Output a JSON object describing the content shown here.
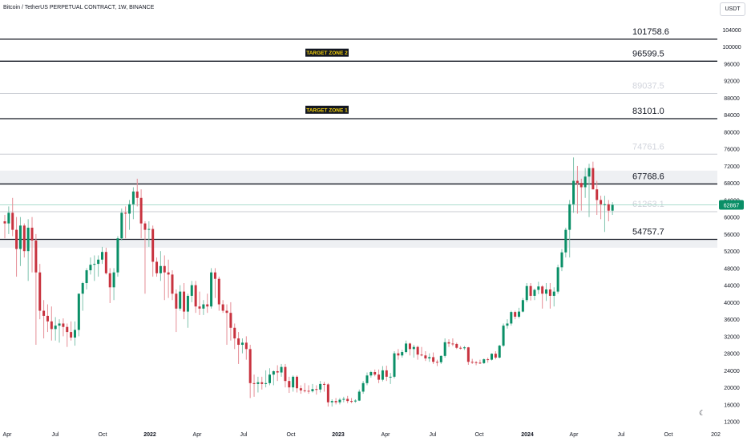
{
  "header": {
    "title": "Bitcoin / TetherUS PERPETUAL CONTRACT, 1W, BINANCE",
    "currency": "USDT"
  },
  "colors": {
    "up": "#0a8f67",
    "down": "#c8333f",
    "up_wick": "#7fc3ae",
    "down_wick": "#e58d95",
    "line_dark": "#131722",
    "line_light": "#c8cbd2",
    "label_dark": "#131722",
    "label_faded": "#d1d4dc",
    "zone_bg": "#131722",
    "zone_fg": "#f5d20a",
    "price_tag": "#0a8f67",
    "band": "#eef0f3"
  },
  "chart_data": {
    "type": "candlestick",
    "y_axis": {
      "ticks": [
        104000,
        100000,
        96000,
        92000,
        88000,
        84000,
        80000,
        76000,
        72000,
        68000,
        64000,
        60000,
        56000,
        52000,
        48000,
        44000,
        40000,
        36000,
        32000,
        28000,
        24000,
        20000,
        16000,
        12000
      ],
      "range": [
        10800,
        107200
      ]
    },
    "x_axis": {
      "ticks": [
        "Apr",
        "Jul",
        "Oct",
        "2022",
        "Apr",
        "Jul",
        "Oct",
        "2023",
        "Apr",
        "Jul",
        "Oct",
        "2024",
        "Apr",
        "Jul",
        "Oct",
        "202"
      ],
      "bold": [
        "2022",
        "2023",
        "2024"
      ]
    },
    "current_price": "62867",
    "current_price_value": 62867,
    "zones": [
      {
        "label": "TARGET ZONE 2",
        "price": 98600
      },
      {
        "label": "TARGET ZONE 1",
        "price": 85200
      }
    ],
    "bands": [
      {
        "from": 67768.6,
        "to": 70900
      },
      {
        "from": 52800,
        "to": 54757.7
      }
    ],
    "levels": [
      {
        "label": "101758.6",
        "price": 101758.6,
        "style": "dark"
      },
      {
        "label": "96599.5",
        "price": 96599.5,
        "style": "dark"
      },
      {
        "label": "89037.5",
        "price": 89037.5,
        "style": "faded"
      },
      {
        "label": "83101.0",
        "price": 83101.0,
        "style": "dark"
      },
      {
        "label": "74761.6",
        "price": 74761.6,
        "style": "faded"
      },
      {
        "label": "67768.6",
        "price": 67768.6,
        "style": "dark"
      },
      {
        "label": "61263.1",
        "price": 61263.1,
        "style": "faded"
      },
      {
        "label": "54757.7",
        "price": 54757.7,
        "style": "dark"
      }
    ],
    "candles": [
      [
        59000,
        60500,
        55000,
        58500
      ],
      [
        58500,
        62500,
        56000,
        61000
      ],
      [
        61000,
        64500,
        55500,
        57000
      ],
      [
        57000,
        60000,
        46000,
        52500
      ],
      [
        52500,
        60000,
        48500,
        58000
      ],
      [
        58000,
        58500,
        50500,
        52000
      ],
      [
        52000,
        59500,
        45000,
        57500
      ],
      [
        57500,
        60000,
        47000,
        54500
      ],
      [
        54500,
        56000,
        30000,
        47000
      ],
      [
        47000,
        49000,
        36000,
        38000
      ],
      [
        38000,
        40500,
        31500,
        36800
      ],
      [
        36800,
        39500,
        33000,
        35500
      ],
      [
        35500,
        39000,
        31000,
        33700
      ],
      [
        33700,
        36500,
        31000,
        34500
      ],
      [
        34500,
        36000,
        30500,
        35000
      ],
      [
        35000,
        36200,
        32000,
        34200
      ],
      [
        34200,
        35000,
        29500,
        33000
      ],
      [
        33000,
        35500,
        31000,
        31700
      ],
      [
        31700,
        35500,
        29800,
        33500
      ],
      [
        33500,
        42000,
        32000,
        42000
      ],
      [
        42000,
        44800,
        38000,
        44500
      ],
      [
        44500,
        48000,
        43000,
        47500
      ],
      [
        47500,
        50500,
        46500,
        48800
      ],
      [
        48800,
        51000,
        45000,
        49000
      ],
      [
        49000,
        51000,
        46000,
        50000
      ],
      [
        50000,
        53000,
        49000,
        51800
      ],
      [
        51800,
        52800,
        46500,
        46800
      ],
      [
        46800,
        48000,
        39800,
        43500
      ],
      [
        43500,
        48000,
        40500,
        47000
      ],
      [
        47000,
        55500,
        46000,
        55000
      ],
      [
        55000,
        62000,
        54500,
        61000
      ],
      [
        61000,
        62500,
        55000,
        60800
      ],
      [
        60800,
        64000,
        57000,
        63000
      ],
      [
        63000,
        67000,
        59500,
        66000
      ],
      [
        66000,
        69000,
        62500,
        64500
      ],
      [
        64500,
        66500,
        55000,
        58500
      ],
      [
        58500,
        59000,
        42000,
        57000
      ],
      [
        57000,
        59000,
        53000,
        57200
      ],
      [
        57200,
        58000,
        46000,
        49500
      ],
      [
        49500,
        50500,
        46000,
        46800
      ],
      [
        46800,
        52000,
        45000,
        48500
      ],
      [
        48500,
        51000,
        40500,
        47000
      ],
      [
        47000,
        50000,
        41000,
        46500
      ],
      [
        46500,
        47500,
        40500,
        42000
      ],
      [
        42000,
        43000,
        33000,
        38500
      ],
      [
        38500,
        44000,
        38000,
        42500
      ],
      [
        42500,
        44500,
        36000,
        37800
      ],
      [
        37800,
        42000,
        34000,
        41500
      ],
      [
        41500,
        45000,
        40000,
        44000
      ],
      [
        44000,
        45000,
        37500,
        39000
      ],
      [
        39000,
        42500,
        37000,
        38500
      ],
      [
        38500,
        40500,
        37000,
        39500
      ],
      [
        39500,
        42000,
        37500,
        39000
      ],
      [
        39000,
        48000,
        38500,
        47000
      ],
      [
        47000,
        48000,
        41000,
        45500
      ],
      [
        45500,
        46000,
        38000,
        39500
      ],
      [
        39500,
        40500,
        37500,
        38000
      ],
      [
        38000,
        39500,
        30000,
        37500
      ],
      [
        37500,
        40000,
        31000,
        34000
      ],
      [
        34000,
        35000,
        29000,
        31500
      ],
      [
        31500,
        33000,
        25500,
        30000
      ],
      [
        30000,
        31500,
        28000,
        30500
      ],
      [
        30500,
        32000,
        26500,
        29000
      ],
      [
        29000,
        30000,
        17500,
        21000
      ],
      [
        21000,
        23000,
        17800,
        20800
      ],
      [
        20800,
        22500,
        18800,
        21200
      ],
      [
        21200,
        22500,
        19500,
        20800
      ],
      [
        20800,
        24000,
        20000,
        21000
      ],
      [
        21000,
        24500,
        20500,
        23000
      ],
      [
        23000,
        24000,
        20500,
        23800
      ],
      [
        23800,
        25200,
        21500,
        23500
      ],
      [
        23500,
        25500,
        22500,
        24800
      ],
      [
        24800,
        25500,
        20000,
        21500
      ],
      [
        21500,
        22500,
        18700,
        20000
      ],
      [
        20000,
        22800,
        19000,
        22500
      ],
      [
        22500,
        22800,
        18800,
        19800
      ],
      [
        19800,
        20500,
        18500,
        19300
      ],
      [
        19300,
        21000,
        18800,
        19200
      ],
      [
        19200,
        20500,
        18500,
        19100
      ],
      [
        19100,
        20800,
        18800,
        19600
      ],
      [
        19600,
        20500,
        18300,
        19500
      ],
      [
        19500,
        21500,
        18800,
        20800
      ],
      [
        20800,
        21300,
        19000,
        20700
      ],
      [
        20700,
        21000,
        15500,
        16500
      ],
      [
        16500,
        17200,
        15500,
        16800
      ],
      [
        16800,
        17500,
        16000,
        16500
      ],
      [
        16500,
        17500,
        16000,
        17100
      ],
      [
        17100,
        17800,
        16500,
        17300
      ],
      [
        17300,
        18000,
        16300,
        16800
      ],
      [
        16800,
        17500,
        16300,
        16700
      ],
      [
        16700,
        17200,
        16400,
        16900
      ],
      [
        16900,
        19500,
        16800,
        19000
      ],
      [
        19000,
        21500,
        18500,
        21000
      ],
      [
        21000,
        23500,
        20500,
        22800
      ],
      [
        22800,
        23900,
        22300,
        23600
      ],
      [
        23600,
        24200,
        22600,
        23000
      ],
      [
        23000,
        24200,
        21000,
        21800
      ],
      [
        21800,
        25000,
        21400,
        24000
      ],
      [
        24000,
        25100,
        21500,
        22500
      ],
      [
        22500,
        23400,
        20800,
        22500
      ],
      [
        22500,
        28500,
        22100,
        28000
      ],
      [
        28000,
        29000,
        26500,
        27500
      ],
      [
        27500,
        28800,
        27000,
        28300
      ],
      [
        28300,
        31000,
        28000,
        30300
      ],
      [
        30300,
        30500,
        27500,
        29000
      ],
      [
        29000,
        30000,
        27000,
        29500
      ],
      [
        29500,
        29800,
        26500,
        27700
      ],
      [
        27700,
        29500,
        27300,
        27500
      ],
      [
        27500,
        28500,
        26200,
        26800
      ],
      [
        26800,
        28000,
        26000,
        27100
      ],
      [
        27100,
        28200,
        25500,
        26000
      ],
      [
        26000,
        26500,
        25000,
        25900
      ],
      [
        25900,
        27500,
        25500,
        27400
      ],
      [
        27400,
        31500,
        27000,
        30600
      ],
      [
        30600,
        31300,
        29500,
        30300
      ],
      [
        30300,
        31500,
        29700,
        30200
      ],
      [
        30200,
        30500,
        29000,
        29300
      ],
      [
        29300,
        29700,
        28900,
        29200
      ],
      [
        29200,
        29700,
        28800,
        29400
      ],
      [
        29400,
        29500,
        25300,
        26000
      ],
      [
        26000,
        26700,
        25500,
        25900
      ],
      [
        25900,
        26200,
        25200,
        25800
      ],
      [
        25800,
        26500,
        25500,
        25700
      ],
      [
        25700,
        26800,
        25500,
        26600
      ],
      [
        26600,
        27000,
        25800,
        26500
      ],
      [
        26500,
        28000,
        26300,
        27900
      ],
      [
        27900,
        28500,
        26600,
        27000
      ],
      [
        27000,
        30000,
        26800,
        29800
      ],
      [
        29800,
        35000,
        29500,
        34500
      ],
      [
        34500,
        36000,
        33800,
        35000
      ],
      [
        35000,
        38000,
        34500,
        37700
      ],
      [
        37700,
        38000,
        36000,
        36600
      ],
      [
        36600,
        38700,
        36200,
        37800
      ],
      [
        37800,
        41000,
        37600,
        40500
      ],
      [
        40500,
        44500,
        40000,
        43800
      ],
      [
        43800,
        44500,
        40400,
        41500
      ],
      [
        41500,
        43200,
        40500,
        42900
      ],
      [
        42900,
        44800,
        41900,
        43700
      ],
      [
        43700,
        44000,
        38500,
        42000
      ],
      [
        42000,
        44500,
        40300,
        43000
      ],
      [
        43000,
        44500,
        38500,
        41500
      ],
      [
        41500,
        43500,
        39000,
        42500
      ],
      [
        42500,
        48800,
        42000,
        48200
      ],
      [
        48200,
        52500,
        47300,
        51700
      ],
      [
        51700,
        57500,
        50500,
        57000
      ],
      [
        57000,
        64000,
        50500,
        63000
      ],
      [
        63000,
        74000,
        61000,
        68500
      ],
      [
        68500,
        72000,
        60800,
        68000
      ],
      [
        68000,
        69000,
        61500,
        67000
      ],
      [
        67000,
        71500,
        64500,
        69500
      ],
      [
        69500,
        72500,
        60000,
        71500
      ],
      [
        71500,
        73000,
        66500,
        66500
      ],
      [
        66500,
        68500,
        60500,
        64000
      ],
      [
        64000,
        65000,
        59500,
        63000
      ],
      [
        63000,
        65000,
        56500,
        63000
      ],
      [
        63000,
        64000,
        59000,
        61500
      ],
      [
        61500,
        63500,
        60500,
        62867
      ]
    ]
  }
}
